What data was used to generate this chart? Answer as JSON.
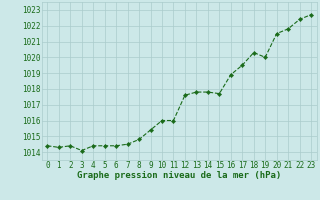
{
  "x": [
    0,
    1,
    2,
    3,
    4,
    5,
    6,
    7,
    8,
    9,
    10,
    11,
    12,
    13,
    14,
    15,
    16,
    17,
    18,
    19,
    20,
    21,
    22,
    23
  ],
  "y": [
    1014.4,
    1014.3,
    1014.4,
    1014.1,
    1014.4,
    1014.4,
    1014.4,
    1014.5,
    1014.8,
    1015.4,
    1016.0,
    1016.0,
    1017.6,
    1017.8,
    1017.8,
    1017.7,
    1018.9,
    1019.5,
    1020.3,
    1020.0,
    1021.5,
    1021.8,
    1022.4,
    1022.7
  ],
  "line_color": "#1a6b1a",
  "marker": "D",
  "marker_size": 2.2,
  "line_width": 0.8,
  "bg_color": "#cce8e8",
  "grid_color": "#aacccc",
  "xlabel": "Graphe pression niveau de la mer (hPa)",
  "xlabel_color": "#1a6b1a",
  "xlabel_fontsize": 6.5,
  "tick_color": "#1a6b1a",
  "tick_fontsize": 5.5,
  "ylim": [
    1013.5,
    1023.5
  ],
  "yticks": [
    1014,
    1015,
    1016,
    1017,
    1018,
    1019,
    1020,
    1021,
    1022,
    1023
  ],
  "xlim": [
    -0.5,
    23.5
  ],
  "xticks": [
    0,
    1,
    2,
    3,
    4,
    5,
    6,
    7,
    8,
    9,
    10,
    11,
    12,
    13,
    14,
    15,
    16,
    17,
    18,
    19,
    20,
    21,
    22,
    23
  ]
}
